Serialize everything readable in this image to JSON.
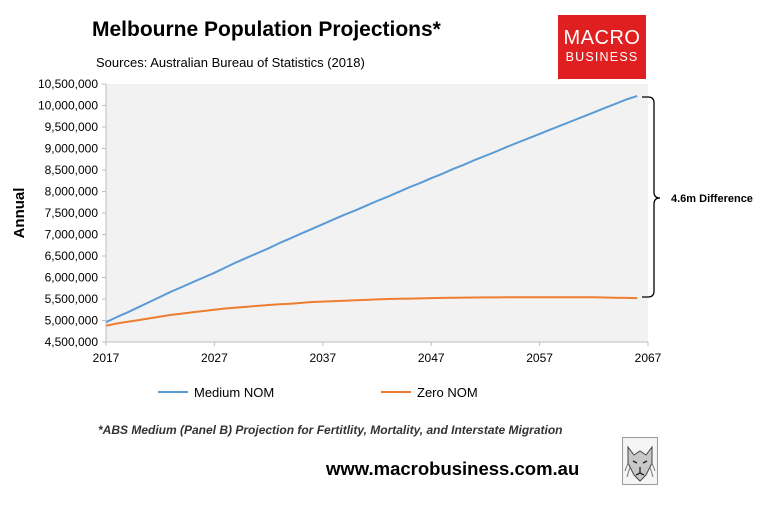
{
  "header": {
    "title": "Melbourne Population Projections*",
    "subtitle": "Sources: Australian Bureau of Statistics (2018)"
  },
  "logo": {
    "line1": "MACRO",
    "line2": "BUSINESS",
    "color": "#e02020",
    "icon": "wolf-icon"
  },
  "footer": {
    "footnote": "*ABS Medium (Panel B) Projection for Fertitlity, Mortality, and Interstate Migration",
    "website": "www.macrobusiness.com.au"
  },
  "chart_data": {
    "type": "line",
    "ylabel": "Annual",
    "ylim": [
      4500000,
      10500000
    ],
    "xlim": [
      2017,
      2067
    ],
    "y_ticks": [
      "4,500,000",
      "5,000,000",
      "5,500,000",
      "6,000,000",
      "6,500,000",
      "7,000,000",
      "7,500,000",
      "8,000,000",
      "8,500,000",
      "9,000,000",
      "9,500,000",
      "10,000,000",
      "10,500,000"
    ],
    "x_ticks": [
      "2017",
      "2027",
      "2037",
      "2047",
      "2057",
      "2067"
    ],
    "grid": false,
    "legend_position": "bottom",
    "annotation": "4.6m Difference",
    "series": [
      {
        "name": "Medium NOM",
        "color": "#5b9bd5",
        "x": [
          2017,
          2018,
          2019,
          2020,
          2021,
          2022,
          2023,
          2024,
          2025,
          2026,
          2027,
          2028,
          2029,
          2030,
          2031,
          2032,
          2033,
          2034,
          2035,
          2036,
          2037,
          2038,
          2039,
          2040,
          2041,
          2042,
          2043,
          2044,
          2045,
          2046,
          2047,
          2048,
          2049,
          2050,
          2051,
          2052,
          2053,
          2054,
          2055,
          2056,
          2057,
          2058,
          2059,
          2060,
          2061,
          2062,
          2063,
          2064,
          2065,
          2066
        ],
        "values": [
          4960000,
          5080000,
          5190000,
          5310000,
          5430000,
          5550000,
          5670000,
          5780000,
          5890000,
          6000000,
          6110000,
          6230000,
          6350000,
          6460000,
          6570000,
          6680000,
          6800000,
          6910000,
          7020000,
          7130000,
          7240000,
          7350000,
          7460000,
          7560000,
          7670000,
          7780000,
          7880000,
          7990000,
          8100000,
          8200000,
          8310000,
          8410000,
          8520000,
          8620000,
          8730000,
          8830000,
          8930000,
          9040000,
          9140000,
          9240000,
          9340000,
          9440000,
          9540000,
          9640000,
          9740000,
          9840000,
          9940000,
          10040000,
          10140000,
          10220000
        ]
      },
      {
        "name": "Zero NOM",
        "color": "#ed7d31",
        "x": [
          2017,
          2018,
          2019,
          2020,
          2021,
          2022,
          2023,
          2024,
          2025,
          2026,
          2027,
          2028,
          2029,
          2030,
          2031,
          2032,
          2033,
          2034,
          2035,
          2036,
          2037,
          2038,
          2039,
          2040,
          2041,
          2042,
          2043,
          2044,
          2045,
          2046,
          2047,
          2048,
          2049,
          2050,
          2051,
          2052,
          2053,
          2054,
          2055,
          2056,
          2057,
          2058,
          2059,
          2060,
          2061,
          2062,
          2063,
          2064,
          2065,
          2066
        ],
        "values": [
          4880000,
          4930000,
          4970000,
          5010000,
          5050000,
          5090000,
          5130000,
          5160000,
          5190000,
          5220000,
          5250000,
          5280000,
          5300000,
          5320000,
          5340000,
          5360000,
          5380000,
          5390000,
          5410000,
          5430000,
          5440000,
          5450000,
          5460000,
          5470000,
          5480000,
          5490000,
          5500000,
          5505000,
          5510000,
          5515000,
          5520000,
          5525000,
          5530000,
          5533000,
          5535000,
          5537000,
          5538000,
          5539000,
          5540000,
          5540000,
          5540000,
          5540000,
          5540000,
          5540000,
          5540000,
          5540000,
          5535000,
          5530000,
          5525000,
          5520000
        ]
      }
    ]
  }
}
